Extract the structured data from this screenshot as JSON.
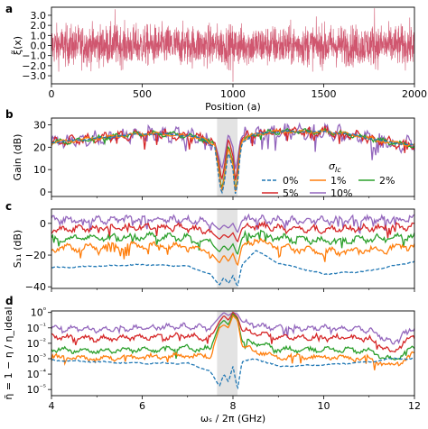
{
  "colors": {
    "noise": "#d0566f",
    "shade": "#e3e3e3",
    "series": [
      "#1f77b4",
      "#ff7f0e",
      "#2ca02c",
      "#d62728",
      "#9467bd"
    ]
  },
  "chart_data": [
    {
      "panel": "a",
      "type": "line",
      "xlabel": "Position (a)",
      "ylabel": "ξ̃(x)",
      "xlim": [
        0,
        2000
      ],
      "ylim": [
        -3.8,
        3.8
      ],
      "xticks": [
        0,
        500,
        1000,
        1500,
        2000
      ],
      "yticks": [
        -3.0,
        -2.0,
        -1.0,
        0.0,
        1.0,
        2.0,
        3.0
      ],
      "xtick_labels": [
        "0",
        "500",
        "1000",
        "1500",
        "2000"
      ],
      "ytick_labels": [
        "−3.0",
        "−2.0",
        "−1.0",
        "0.0",
        "1.0",
        "2.0",
        "3.0"
      ],
      "series": [
        {
          "description": "random position-dependent fluctuation, approx. zero mean, unit std, 2000 points",
          "n_points": 2000,
          "std": 1.0,
          "peaks": [
            {
              "x": 350,
              "y": 3.6
            },
            {
              "x": 1780,
              "y": 3.7
            },
            {
              "x": 1000,
              "y": -3.6
            }
          ]
        }
      ]
    },
    {
      "panel": "b",
      "type": "line",
      "xlabel": "",
      "ylabel": "Gain (dB)",
      "xlim": [
        4,
        12
      ],
      "ylim": [
        -2,
        33
      ],
      "xticks": [
        4,
        6,
        8,
        10,
        12
      ],
      "yticks": [
        0,
        10,
        20,
        30
      ],
      "xtick_labels": [
        "",
        "",
        "",
        "",
        ""
      ],
      "ytick_labels": [
        "0",
        "10",
        "20",
        "30"
      ],
      "shaded_band": [
        7.65,
        8.1
      ],
      "legend": {
        "title": "σ_Ic",
        "position": "lower-right",
        "entries": [
          "0%",
          "1%",
          "2%",
          "5%",
          "10%"
        ]
      },
      "series_x": [
        4.0,
        4.5,
        5.0,
        5.5,
        6.0,
        6.5,
        7.0,
        7.3,
        7.6,
        7.7,
        7.75,
        7.8,
        7.9,
        8.0,
        8.05,
        8.1,
        8.15,
        8.2,
        8.5,
        9.0,
        9.5,
        10.0,
        10.5,
        11.0,
        11.5,
        12.0
      ],
      "series": [
        {
          "name": "0%",
          "values": [
            22,
            23,
            24,
            25,
            26,
            26,
            25,
            24,
            20,
            5,
            -1,
            3,
            18,
            10,
            -1,
            3,
            15,
            22,
            26,
            27,
            27,
            27,
            26,
            24,
            22,
            21
          ]
        },
        {
          "name": "1%",
          "values": [
            22,
            23,
            24,
            25,
            26,
            26,
            25,
            24,
            21,
            8,
            0,
            5,
            20,
            12,
            0,
            5,
            17,
            23,
            26,
            27,
            27,
            27,
            26,
            24,
            22,
            21
          ]
        },
        {
          "name": "2%",
          "values": [
            22,
            23,
            24,
            25,
            26,
            26,
            25,
            24,
            21,
            9,
            1,
            6,
            21,
            13,
            1,
            6,
            18,
            23,
            26,
            27,
            27,
            27,
            26,
            24,
            22,
            21
          ]
        },
        {
          "name": "5%",
          "values": [
            22,
            23,
            24,
            25,
            26,
            26,
            25,
            24,
            22,
            12,
            5,
            10,
            24,
            16,
            5,
            10,
            20,
            24,
            26,
            27,
            27,
            27,
            26,
            24,
            22,
            21
          ]
        },
        {
          "name": "10%",
          "values": [
            22,
            23,
            24,
            25,
            26,
            26,
            25,
            24,
            22,
            15,
            10,
            14,
            26,
            20,
            10,
            14,
            22,
            25,
            26,
            27,
            27,
            27,
            26,
            24,
            22,
            21
          ]
        }
      ]
    },
    {
      "panel": "c",
      "type": "line",
      "xlabel": "",
      "ylabel": "S₁₁ (dB)",
      "xlim": [
        4,
        12
      ],
      "ylim": [
        -41,
        9
      ],
      "xticks": [
        4,
        6,
        8,
        10,
        12
      ],
      "yticks": [
        -40,
        -20,
        0
      ],
      "xtick_labels": [
        "",
        "",
        "",
        "",
        ""
      ],
      "ytick_labels": [
        "−40",
        "−20",
        "0"
      ],
      "shaded_band": [
        7.65,
        8.1
      ],
      "series_x": [
        4.0,
        5.0,
        6.0,
        7.0,
        7.5,
        7.7,
        7.8,
        7.9,
        8.0,
        8.1,
        8.2,
        8.5,
        9.0,
        10.0,
        11.0,
        12.0
      ],
      "series": [
        {
          "name": "0%",
          "values": [
            -28,
            -27,
            -26,
            -27,
            -32,
            -39,
            -34,
            -38,
            -33,
            -40,
            -26,
            -17,
            -25,
            -32,
            -30,
            -24
          ]
        },
        {
          "name": "1%",
          "values": [
            -16,
            -15,
            -14,
            -15,
            -18,
            -25,
            -20,
            -24,
            -19,
            -27,
            -14,
            -10,
            -15,
            -18,
            -17,
            -14
          ]
        },
        {
          "name": "2%",
          "values": [
            -10,
            -9,
            -8,
            -9,
            -12,
            -18,
            -14,
            -17,
            -13,
            -20,
            -9,
            -6,
            -9,
            -11,
            -10,
            -8
          ]
        },
        {
          "name": "5%",
          "values": [
            -4,
            -3,
            -2,
            -3,
            -5,
            -10,
            -7,
            -9,
            -6,
            -12,
            -3,
            -1,
            -3,
            -4,
            -3,
            -2
          ]
        },
        {
          "name": "10%",
          "values": [
            2,
            2,
            3,
            2,
            1,
            -4,
            -1,
            -3,
            0,
            -6,
            2,
            3,
            2,
            2,
            2,
            3
          ]
        }
      ]
    },
    {
      "panel": "d",
      "type": "line",
      "xlabel": "ωₛ / 2π (GHz)",
      "ylabel": "η̄ = 1 − η / η_ideal",
      "xlim": [
        4,
        12
      ],
      "ylim_log10": [
        -5.4,
        0.1
      ],
      "yscale": "log",
      "xticks": [
        4,
        6,
        8,
        10,
        12
      ],
      "yticks_log10": [
        -5,
        -4,
        -3,
        -2,
        -1,
        0
      ],
      "xtick_labels": [
        "4",
        "6",
        "8",
        "10",
        "12"
      ],
      "ytick_labels": [
        "10⁻⁵",
        "10⁻⁴",
        "10⁻³",
        "10⁻²",
        "10⁻¹",
        "10⁰"
      ],
      "shaded_band": [
        7.65,
        8.1
      ],
      "series_x": [
        4.0,
        5.0,
        6.0,
        7.0,
        7.5,
        7.7,
        7.8,
        7.9,
        8.0,
        8.1,
        8.2,
        8.5,
        9.0,
        10.0,
        11.0,
        11.5,
        12.0
      ],
      "series": [
        {
          "name": "0%",
          "values_log10": [
            -3.1,
            -3.2,
            -3.3,
            -3.3,
            -3.8,
            -4.8,
            -4.0,
            -4.5,
            -3.5,
            -5.0,
            -3.2,
            -3.0,
            -3.5,
            -3.4,
            -3.2,
            -3.0,
            -3.0
          ]
        },
        {
          "name": "1%",
          "values_log10": [
            -2.9,
            -3.0,
            -2.9,
            -2.8,
            -2.9,
            -1.0,
            -0.8,
            -1.0,
            -0.2,
            -0.5,
            -2.2,
            -2.5,
            -2.9,
            -2.9,
            -3.0,
            -3.5,
            -2.7
          ]
        },
        {
          "name": "2%",
          "values_log10": [
            -2.4,
            -2.5,
            -2.4,
            -2.3,
            -2.4,
            -0.8,
            -0.5,
            -0.8,
            -0.1,
            -0.4,
            -1.9,
            -2.0,
            -2.4,
            -2.4,
            -2.5,
            -3.1,
            -2.3
          ]
        },
        {
          "name": "5%",
          "values_log10": [
            -1.6,
            -1.7,
            -1.6,
            -1.5,
            -1.7,
            -0.6,
            -0.2,
            -0.5,
            0.0,
            -0.3,
            -1.2,
            -1.3,
            -1.6,
            -1.6,
            -1.7,
            -2.6,
            -1.5
          ]
        },
        {
          "name": "10%",
          "values_log10": [
            -1.0,
            -1.1,
            -1.0,
            -0.9,
            -1.0,
            -0.3,
            0.0,
            -0.2,
            0.0,
            -0.1,
            -0.6,
            -0.8,
            -1.0,
            -1.0,
            -1.1,
            -2.0,
            -0.9
          ]
        }
      ]
    }
  ]
}
